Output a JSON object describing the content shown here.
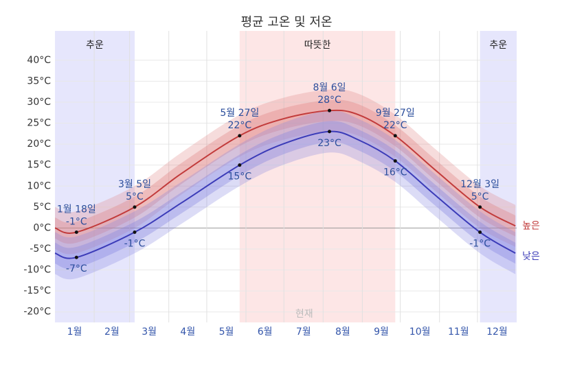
{
  "chart_data": {
    "type": "line",
    "title": "평균 고온 및 저온",
    "xlim": [
      0,
      365
    ],
    "ylim": [
      -22.5,
      47
    ],
    "yticks": [
      {
        "value": -20,
        "label": "-20°C"
      },
      {
        "value": -15,
        "label": "-15°C"
      },
      {
        "value": -10,
        "label": "-10°C"
      },
      {
        "value": -5,
        "label": "-5°C"
      },
      {
        "value": 0,
        "label": "0°C"
      },
      {
        "value": 5,
        "label": "5°C"
      },
      {
        "value": 10,
        "label": "10°C"
      },
      {
        "value": 15,
        "label": "15°C"
      },
      {
        "value": 20,
        "label": "20°C"
      },
      {
        "value": 25,
        "label": "25°C"
      },
      {
        "value": 30,
        "label": "30°C"
      },
      {
        "value": 35,
        "label": "35°C"
      },
      {
        "value": 40,
        "label": "40°C"
      }
    ],
    "categories": [
      "1월",
      "2월",
      "3월",
      "4월",
      "5월",
      "6월",
      "7월",
      "8월",
      "9월",
      "10월",
      "11월",
      "12월"
    ],
    "grid": true,
    "seasons": [
      {
        "label": "추운",
        "start": 0,
        "end": 63,
        "color": "#e6e6fc"
      },
      {
        "label": "따뜻한",
        "start": 146,
        "end": 269,
        "color": "#fde6e6"
      },
      {
        "label": "추운",
        "start": 336,
        "end": 365,
        "color": "#e6e6fc"
      }
    ],
    "x": [
      0,
      17,
      63,
      100,
      146,
      180,
      217,
      240,
      269,
      300,
      336,
      364
    ],
    "series": [
      {
        "name": "높은",
        "color": "#c23b3b",
        "band_color": "#e08080",
        "values": [
          0,
          -1,
          5,
          13,
          22,
          26,
          28,
          27,
          22,
          14,
          5,
          0.5
        ],
        "inner_low": [
          -2.5,
          -3.5,
          2.5,
          10.5,
          19.5,
          23.5,
          25.5,
          24.5,
          19.5,
          11.5,
          2.5,
          -2
        ],
        "inner_high": [
          2.5,
          1.5,
          7.5,
          15.5,
          24.5,
          28.5,
          30.5,
          29.5,
          24.5,
          16.5,
          7.5,
          3
        ],
        "outer_low": [
          -5,
          -6,
          0,
          8,
          17,
          21,
          23,
          22,
          17,
          9,
          0,
          -4.5
        ],
        "outer_high": [
          5,
          4,
          10,
          18,
          27,
          31,
          33,
          32,
          27,
          19,
          10,
          5.5
        ]
      },
      {
        "name": "낮은",
        "color": "#3b3bb8",
        "band_color": "#8080e0",
        "values": [
          -6,
          -7,
          -1,
          6,
          15,
          20,
          23,
          21,
          16,
          8,
          -1,
          -6
        ],
        "inner_low": [
          -8.5,
          -9.5,
          -3.5,
          3.5,
          12.5,
          17.5,
          20.5,
          18.5,
          13.5,
          5.5,
          -3.5,
          -8.5
        ],
        "inner_high": [
          -3.5,
          -4.5,
          1.5,
          8.5,
          17.5,
          22.5,
          25.5,
          23.5,
          18.5,
          10.5,
          1.5,
          -3.5
        ],
        "outer_low": [
          -11,
          -12,
          -6,
          1,
          10,
          15,
          18,
          16,
          11,
          3,
          -6,
          -11
        ],
        "outer_high": [
          -1,
          -2,
          4,
          11,
          20,
          25,
          28,
          26,
          21,
          13,
          4,
          -1
        ]
      }
    ],
    "annotations": [
      {
        "x": 17,
        "label": "1월 18일",
        "high": -1,
        "high_label": "-1°C",
        "low": -7,
        "low_label": "-7°C"
      },
      {
        "x": 63,
        "label": "3월 5일",
        "high": 5,
        "high_label": "5°C",
        "low": -1,
        "low_label": "-1°C"
      },
      {
        "x": 146,
        "label": "5월 27일",
        "high": 22,
        "high_label": "22°C",
        "low": 15,
        "low_label": "15°C"
      },
      {
        "x": 217,
        "label": "8월 6일",
        "high": 28,
        "high_label": "28°C",
        "low": 23,
        "low_label": "23°C"
      },
      {
        "x": 269,
        "label": "9월 27일",
        "high": 22,
        "high_label": "22°C",
        "low": 16,
        "low_label": "16°C"
      },
      {
        "x": 336,
        "label": "12월 3일",
        "high": 5,
        "high_label": "5°C",
        "low": -1,
        "low_label": "-1°C"
      }
    ],
    "now": {
      "label": "현재",
      "x": 197
    }
  }
}
